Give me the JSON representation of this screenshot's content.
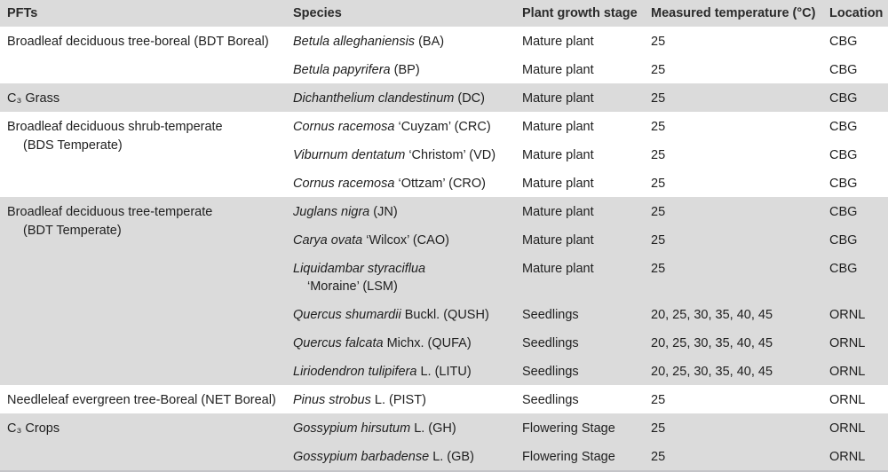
{
  "table": {
    "columns": [
      {
        "key": "pft",
        "label": "PFTs"
      },
      {
        "key": "species",
        "label": "Species"
      },
      {
        "key": "stage",
        "label": "Plant growth stage"
      },
      {
        "key": "temperature",
        "label": "Measured temperature (°C)"
      },
      {
        "key": "location",
        "label": "Location"
      }
    ],
    "colors": {
      "band_gray": "#dbdbdb",
      "band_white": "#ffffff",
      "text": "#1f1f1f",
      "bottom_border": "#c3c3c7"
    },
    "groups": [
      {
        "shaded": false,
        "pft_lines": [
          "Broadleaf deciduous tree-boreal (BDT Boreal)"
        ],
        "rows": [
          {
            "species": [
              {
                "text": "Betula alleghaniensis",
                "italic": true
              },
              {
                "text": "(BA)",
                "italic": false
              }
            ],
            "stage": "Mature plant",
            "temp": "25",
            "loc": "CBG"
          },
          {
            "species": [
              {
                "text": "Betula papyrifera",
                "italic": true
              },
              {
                "text": "(BP)",
                "italic": false
              }
            ],
            "stage": "Mature plant",
            "temp": "25",
            "loc": "CBG"
          }
        ]
      },
      {
        "shaded": true,
        "pft_lines": [
          "C₃ Grass"
        ],
        "rows": [
          {
            "species": [
              {
                "text": "Dichanthelium clandestinum",
                "italic": true
              },
              {
                "text": "(DC)",
                "italic": false
              }
            ],
            "stage": "Mature plant",
            "temp": "25",
            "loc": "CBG"
          }
        ]
      },
      {
        "shaded": false,
        "pft_lines": [
          "Broadleaf deciduous shrub-temperate",
          "(BDS Temperate)"
        ],
        "rows": [
          {
            "species": [
              {
                "text": "Cornus racemosa",
                "italic": true
              },
              {
                "text": "‘Cuyzam’ (CRC)",
                "italic": false
              }
            ],
            "stage": "Mature plant",
            "temp": "25",
            "loc": "CBG"
          },
          {
            "species": [
              {
                "text": "Viburnum dentatum",
                "italic": true
              },
              {
                "text": "‘Christom’ (VD)",
                "italic": false
              }
            ],
            "stage": "Mature plant",
            "temp": "25",
            "loc": "CBG"
          },
          {
            "species": [
              {
                "text": "Cornus racemosa",
                "italic": true
              },
              {
                "text": "‘Ottzam’ (CRO)",
                "italic": false
              }
            ],
            "stage": "Mature plant",
            "temp": "25",
            "loc": "CBG"
          }
        ]
      },
      {
        "shaded": true,
        "pft_lines": [
          "Broadleaf deciduous tree-temperate",
          "(BDT Temperate)"
        ],
        "rows": [
          {
            "species": [
              {
                "text": "Juglans nigra",
                "italic": true
              },
              {
                "text": "(JN)",
                "italic": false
              }
            ],
            "stage": "Mature plant",
            "temp": "25",
            "loc": "CBG"
          },
          {
            "species": [
              {
                "text": "Carya ovata",
                "italic": true
              },
              {
                "text": "‘Wilcox’ (CAO)",
                "italic": false
              }
            ],
            "stage": "Mature plant",
            "temp": "25",
            "loc": "CBG"
          },
          {
            "species": [
              {
                "text": "Liquidambar styraciflua",
                "italic": true
              },
              {
                "text": "‘Moraine’ (LSM)",
                "italic": false,
                "newline": true
              }
            ],
            "stage": "Mature plant",
            "temp": "25",
            "loc": "CBG"
          },
          {
            "species": [
              {
                "text": "Quercus shumardii",
                "italic": true
              },
              {
                "text": "Buckl. (QUSH)",
                "italic": false
              }
            ],
            "stage": "Seedlings",
            "temp": "20, 25, 30, 35, 40, 45",
            "loc": "ORNL"
          },
          {
            "species": [
              {
                "text": "Quercus falcata",
                "italic": true
              },
              {
                "text": "Michx. (QUFA)",
                "italic": false
              }
            ],
            "stage": "Seedlings",
            "temp": "20, 25, 30, 35, 40, 45",
            "loc": "ORNL"
          },
          {
            "species": [
              {
                "text": "Liriodendron tulipifera",
                "italic": true
              },
              {
                "text": "L. (LITU)",
                "italic": false
              }
            ],
            "stage": "Seedlings",
            "temp": "20, 25, 30, 35, 40, 45",
            "loc": "ORNL"
          }
        ]
      },
      {
        "shaded": false,
        "pft_lines": [
          "Needleleaf evergreen tree-Boreal (NET Boreal)"
        ],
        "rows": [
          {
            "species": [
              {
                "text": "Pinus strobus",
                "italic": true
              },
              {
                "text": "L. (PIST)",
                "italic": false
              }
            ],
            "stage": "Seedlings",
            "temp": "25",
            "loc": "ORNL"
          }
        ]
      },
      {
        "shaded": true,
        "pft_lines": [
          "C₃ Crops"
        ],
        "rows": [
          {
            "species": [
              {
                "text": "Gossypium hirsutum",
                "italic": true
              },
              {
                "text": "L. (GH)",
                "italic": false
              }
            ],
            "stage": "Flowering Stage",
            "temp": "25",
            "loc": "ORNL"
          },
          {
            "species": [
              {
                "text": "Gossypium barbadense",
                "italic": true
              },
              {
                "text": "L. (GB)",
                "italic": false
              }
            ],
            "stage": "Flowering Stage",
            "temp": "25",
            "loc": "ORNL"
          }
        ]
      }
    ]
  }
}
